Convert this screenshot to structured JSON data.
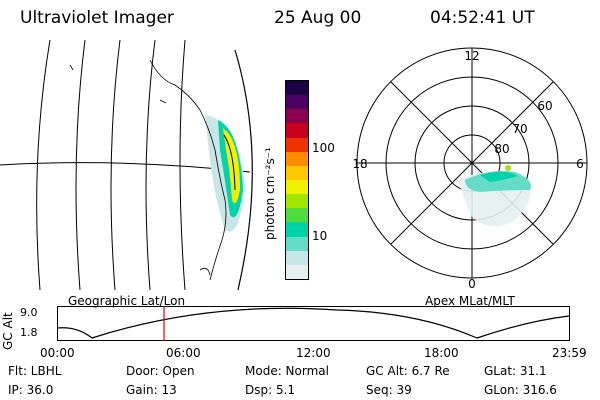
{
  "header": {
    "title": "Ultraviolet Imager",
    "date": "25 Aug 00",
    "time": "04:52:41  UT"
  },
  "colorbar": {
    "label": "photon cm⁻²s⁻¹",
    "ticks": [
      "100",
      "10"
    ],
    "colors": [
      "#e6f0f0",
      "#c8e6e6",
      "#64dcc8",
      "#00d2aa",
      "#50dc3c",
      "#a0e600",
      "#f0f000",
      "#ffc800",
      "#ff8c00",
      "#f03200",
      "#c8001e",
      "#8c0050",
      "#4b0064",
      "#1e0046"
    ]
  },
  "polar": {
    "mlt_labels": [
      "12",
      "18",
      "6",
      "0"
    ],
    "lat_labels": [
      "60",
      "70",
      "80"
    ]
  },
  "section_labels": {
    "left": "Geographic Lat/Lon",
    "right": "Apex MLat/MLT"
  },
  "altitude_plot": {
    "axis_label": "GC Alt",
    "y_ticks": [
      "9.0",
      "1.8"
    ],
    "x_ticks": [
      "00:00",
      "06:00",
      "12:00",
      "18:00",
      "23:59"
    ]
  },
  "footer": {
    "flt": "Flt: LBHL",
    "ip": "IP: 36.0",
    "door": "Door: Open",
    "gain": "Gain: 13",
    "mode": "Mode: Normal",
    "dsp": "Dsp:    5.1",
    "gcalt": "GC Alt: 6.7 Re",
    "seq": "Seq: 39",
    "glat": "GLat:  31.1",
    "glon": "GLon: 316.6"
  }
}
